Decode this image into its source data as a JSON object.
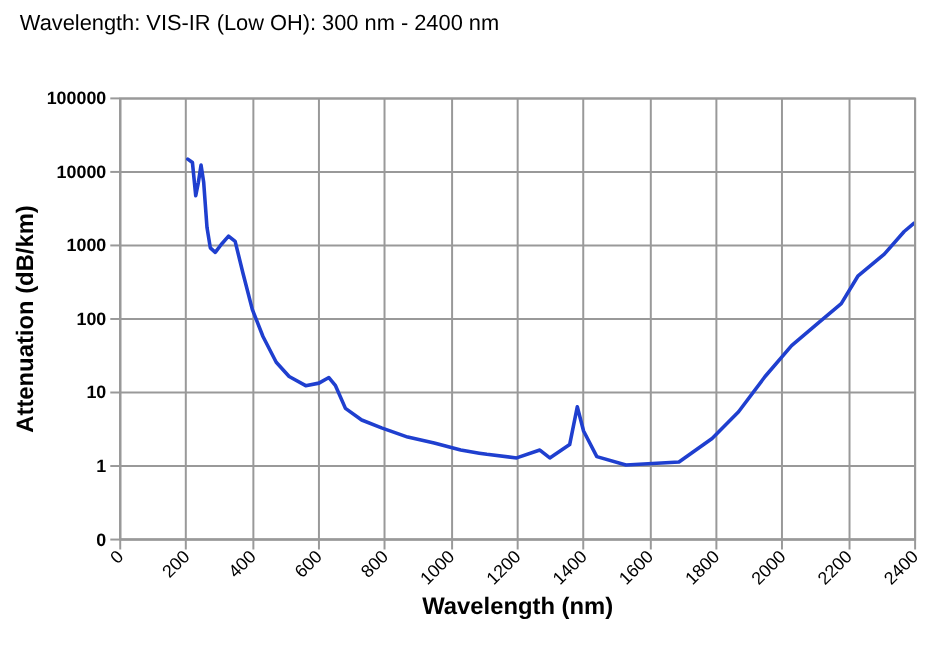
{
  "chart_data": {
    "type": "line",
    "title": "Wavelength:  VIS-IR (Low OH): 300 nm - 2400 nm",
    "xlabel": "Wavelength (nm)",
    "ylabel": "Attenuation (dB/km)",
    "log": "y",
    "grid": true,
    "legend": false,
    "marker": "none",
    "line_style": "solid",
    "xlim": [
      0,
      2400
    ],
    "xticks": [
      0,
      200,
      400,
      600,
      800,
      1000,
      1200,
      1400,
      1600,
      1800,
      2000,
      2200,
      2400
    ],
    "ylim": [
      0.1,
      100000
    ],
    "yticks": [
      {
        "value": 0.1,
        "label": "0"
      },
      1,
      10,
      100,
      1000,
      10000,
      100000
    ],
    "x": [
      207,
      221,
      231,
      239,
      247,
      255,
      265,
      275,
      290,
      308,
      330,
      350,
      374,
      402,
      434,
      474,
      513,
      563,
      603,
      633,
      653,
      683,
      732,
      792,
      871,
      951,
      1031,
      1087,
      1110,
      1200,
      1270,
      1300,
      1360,
      1383,
      1402,
      1442,
      1530,
      1610,
      1690,
      1790,
      1870,
      1950,
      2030,
      2110,
      2180,
      2230,
      2310,
      2370,
      2400
    ],
    "series": [
      {
        "color": "#1f3fcf",
        "values": [
          14500,
          13000,
          4600,
          7000,
          12000,
          7000,
          1700,
          900,
          780,
          1000,
          1300,
          1100,
          400,
          130,
          56,
          25,
          16,
          12,
          13,
          15.5,
          12,
          5.9,
          4.1,
          3.2,
          2.4,
          2.0,
          1.6,
          1.45,
          1.4,
          1.25,
          1.6,
          1.25,
          1.9,
          6.2,
          2.9,
          1.3,
          1.0,
          1.05,
          1.1,
          2.3,
          5.3,
          16,
          42,
          85,
          157,
          370,
          740,
          1500,
          1950
        ]
      }
    ]
  }
}
